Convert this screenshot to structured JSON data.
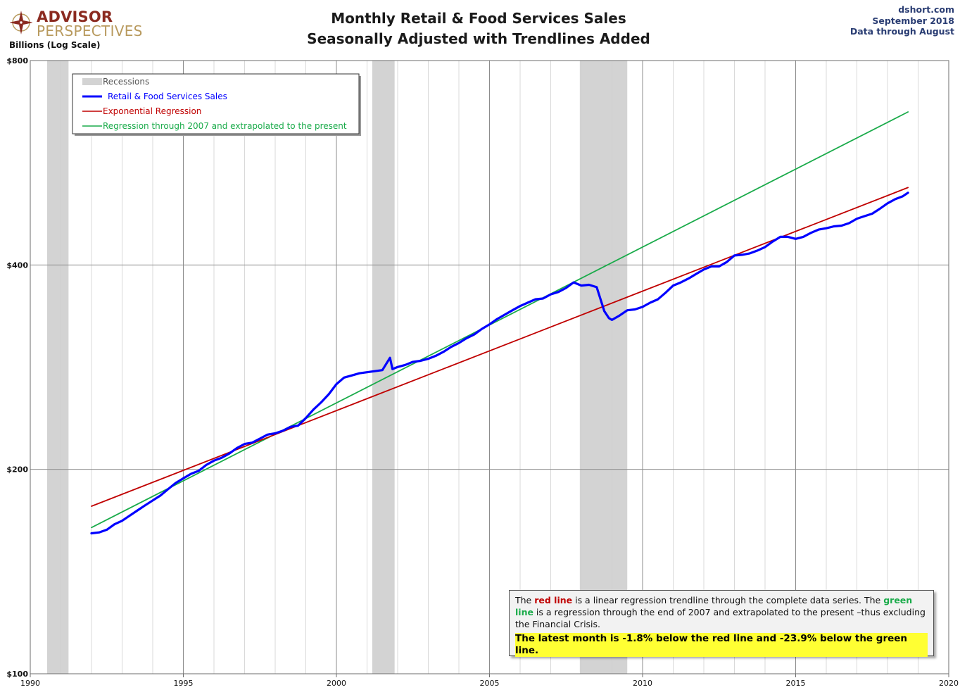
{
  "header": {
    "logo_title": "ADVISOR",
    "logo_subtitle": "PERSPECTIVES",
    "title_line1": "Monthly Retail & Food Services Sales",
    "title_line2": "Seasonally Adjusted with Trendlines Added",
    "source_line1": "dshort.com",
    "source_line2": "September 2018",
    "source_line3": "Data through August",
    "y_axis_caption": "Billions (Log Scale)"
  },
  "note": {
    "part1": "The ",
    "red_label": "red line",
    "part2": " is a  linear regression trendline  through the complete data series. The ",
    "green_label": "green line",
    "part3": " is a regression through the end of 2007 and extrapolated to the present –thus excluding the Financial Crisis.",
    "highlight": "The latest month is -1.8% below the red line and -23.9% below the green line."
  },
  "chart_data": {
    "type": "line",
    "y_scale": "log",
    "ylim": [
      100,
      800
    ],
    "xlim": [
      1990,
      2020
    ],
    "y_ticks": [
      100,
      200,
      400,
      800
    ],
    "y_tick_labels": [
      "$100",
      "$200",
      "$400",
      "$800"
    ],
    "x_ticks": [
      1990,
      1995,
      2000,
      2005,
      2010,
      2015,
      2020
    ],
    "x_tick_labels": [
      "1990",
      "1995",
      "2000",
      "2005",
      "2010",
      "2015",
      "2020"
    ],
    "grid": true,
    "legend_position": "top-left",
    "legend": [
      {
        "label": "Recessions",
        "color": "#d3d3d3",
        "kind": "area"
      },
      {
        "label": "Retail & Food Services Sales",
        "color": "#0000ff",
        "kind": "line"
      },
      {
        "label": "Exponential Regression",
        "color": "#c00000",
        "kind": "line"
      },
      {
        "label": "Regression through 2007 and extrapolated to the present",
        "color": "#1aab4a",
        "kind": "line"
      }
    ],
    "recessions": [
      [
        1990.55,
        1991.25
      ],
      [
        2001.17,
        2001.9
      ],
      [
        2007.95,
        2009.5
      ]
    ],
    "series": [
      {
        "name": "Retail & Food Services Sales",
        "color": "#0000ff",
        "x": [
          1992.0,
          1992.25,
          1992.5,
          1992.75,
          1993.0,
          1993.25,
          1993.5,
          1993.75,
          1994.0,
          1994.25,
          1994.5,
          1994.75,
          1995.0,
          1995.25,
          1995.5,
          1995.75,
          1996.0,
          1996.25,
          1996.5,
          1996.75,
          1997.0,
          1997.25,
          1997.5,
          1997.75,
          1998.0,
          1998.25,
          1998.5,
          1998.75,
          1999.0,
          1999.25,
          1999.5,
          1999.75,
          2000.0,
          2000.25,
          2000.5,
          2000.75,
          2001.0,
          2001.25,
          2001.5,
          2001.75,
          2001.83,
          2002.0,
          2002.25,
          2002.5,
          2002.75,
          2003.0,
          2003.25,
          2003.5,
          2003.75,
          2004.0,
          2004.25,
          2004.5,
          2004.75,
          2005.0,
          2005.25,
          2005.5,
          2005.75,
          2006.0,
          2006.25,
          2006.5,
          2006.75,
          2007.0,
          2007.25,
          2007.5,
          2007.75,
          2008.0,
          2008.25,
          2008.5,
          2008.75,
          2008.9,
          2009.0,
          2009.25,
          2009.5,
          2009.75,
          2010.0,
          2010.25,
          2010.5,
          2010.75,
          2011.0,
          2011.25,
          2011.5,
          2011.75,
          2012.0,
          2012.25,
          2012.5,
          2012.75,
          2013.0,
          2013.25,
          2013.5,
          2013.75,
          2014.0,
          2014.25,
          2014.5,
          2014.75,
          2015.0,
          2015.25,
          2015.5,
          2015.75,
          2016.0,
          2016.25,
          2016.5,
          2016.75,
          2017.0,
          2017.25,
          2017.5,
          2017.75,
          2018.0,
          2018.25,
          2018.5,
          2018.67
        ],
        "y": [
          161,
          161.5,
          163,
          166,
          168,
          171,
          174,
          177,
          180,
          183,
          187,
          191,
          194,
          197,
          199,
          203,
          206,
          208,
          211,
          215,
          218,
          219,
          222,
          225,
          226,
          228,
          231,
          232,
          238,
          245,
          251,
          258,
          267,
          273,
          275,
          277,
          278,
          279,
          280,
          292,
          281,
          283,
          285,
          288,
          289,
          291,
          294,
          298,
          303,
          307,
          312,
          316,
          322,
          327,
          333,
          338,
          343,
          348,
          352,
          356,
          357,
          362,
          365,
          370,
          377,
          373,
          374,
          371,
          342,
          334,
          332,
          337,
          343,
          344,
          347,
          352,
          356,
          364,
          373,
          377,
          382,
          388,
          394,
          398,
          398,
          404,
          413,
          414,
          416,
          420,
          425,
          433,
          440,
          440,
          437,
          440,
          446,
          451,
          453,
          456,
          457,
          461,
          468,
          472,
          476,
          484,
          493,
          500,
          505,
          511
        ]
      },
      {
        "name": "Exponential Regression",
        "color": "#c00000",
        "x": [
          1992.0,
          2018.67
        ],
        "y": [
          176.5,
          520
        ]
      },
      {
        "name": "Regression through 2007 and extrapolated to the present",
        "color": "#1aab4a",
        "x": [
          1992.0,
          2018.67
        ],
        "y": [
          164.2,
          672
        ]
      }
    ]
  }
}
